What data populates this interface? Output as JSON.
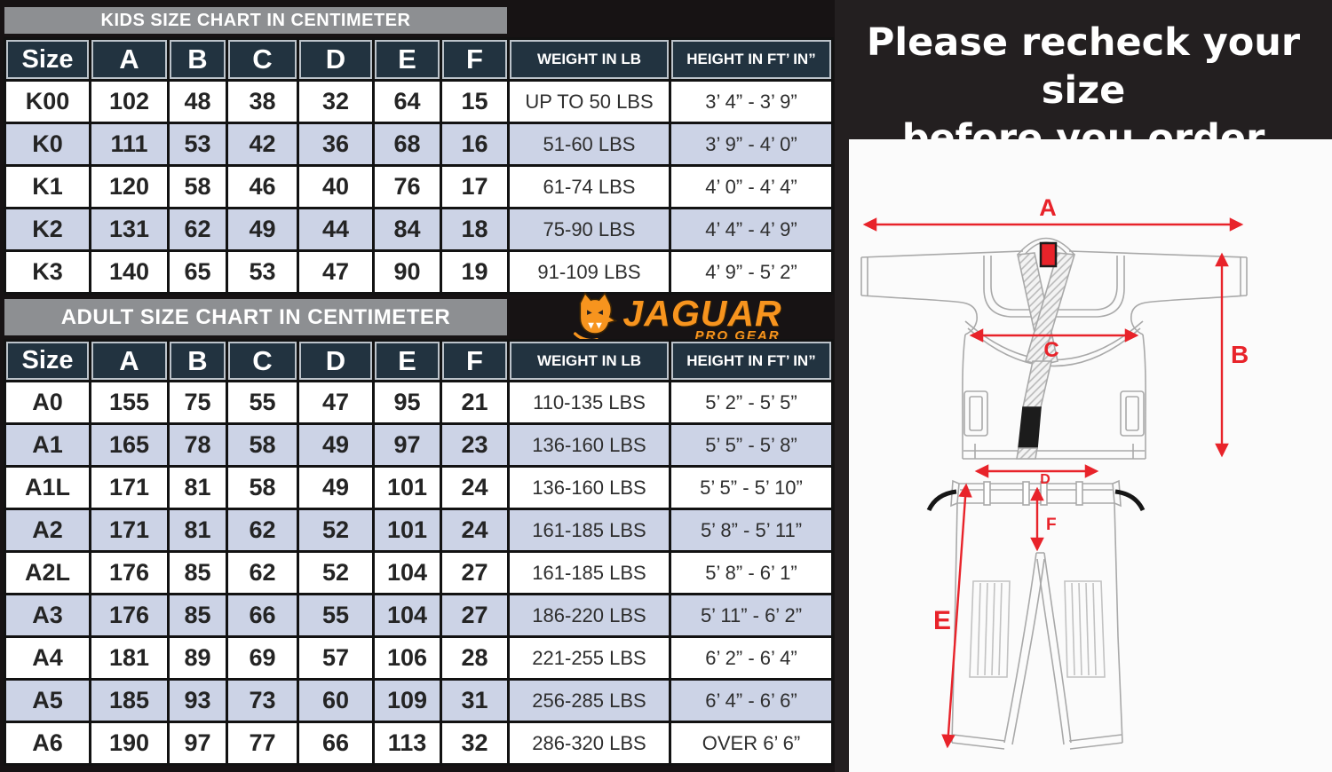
{
  "notice": {
    "line1": "Please recheck your size",
    "line2": "before you order"
  },
  "logo": {
    "brand": "JAGUAR",
    "tagline": "PRO GEAR"
  },
  "kids_chart": {
    "title": "KIDS SIZE CHART IN CENTIMETER",
    "columns": [
      "Size",
      "A",
      "B",
      "C",
      "D",
      "E",
      "F",
      "WEIGHT IN LB",
      "HEIGHT IN FT’ IN”"
    ],
    "rows": [
      [
        "K00",
        "102",
        "48",
        "38",
        "32",
        "64",
        "15",
        "UP TO 50 LBS",
        "3’ 4” - 3’ 9”"
      ],
      [
        "K0",
        "111",
        "53",
        "42",
        "36",
        "68",
        "16",
        "51-60 LBS",
        "3’ 9” - 4’ 0”"
      ],
      [
        "K1",
        "120",
        "58",
        "46",
        "40",
        "76",
        "17",
        "61-74 LBS",
        "4’ 0” - 4’ 4”"
      ],
      [
        "K2",
        "131",
        "62",
        "49",
        "44",
        "84",
        "18",
        "75-90 LBS",
        "4’ 4” - 4’ 9”"
      ],
      [
        "K3",
        "140",
        "65",
        "53",
        "47",
        "90",
        "19",
        "91-109 LBS",
        "4’ 9” - 5’ 2”"
      ]
    ]
  },
  "adult_chart": {
    "title": "ADULT SIZE CHART IN CENTIMETER",
    "columns": [
      "Size",
      "A",
      "B",
      "C",
      "D",
      "E",
      "F",
      "WEIGHT IN LB",
      "HEIGHT IN FT’ IN”"
    ],
    "rows": [
      [
        "A0",
        "155",
        "75",
        "55",
        "47",
        "95",
        "21",
        "110-135 LBS",
        "5’ 2” - 5’ 5”"
      ],
      [
        "A1",
        "165",
        "78",
        "58",
        "49",
        "97",
        "23",
        "136-160 LBS",
        "5’ 5” - 5’ 8”"
      ],
      [
        "A1L",
        "171",
        "81",
        "58",
        "49",
        "101",
        "24",
        "136-160 LBS",
        "5’ 5” - 5’ 10”"
      ],
      [
        "A2",
        "171",
        "81",
        "62",
        "52",
        "101",
        "24",
        "161-185 LBS",
        "5’ 8” - 5’ 11”"
      ],
      [
        "A2L",
        "176",
        "85",
        "62",
        "52",
        "104",
        "27",
        "161-185 LBS",
        "5’ 8” - 6’ 1”"
      ],
      [
        "A3",
        "176",
        "85",
        "66",
        "55",
        "104",
        "27",
        "186-220 LBS",
        "5’ 11” - 6’ 2”"
      ],
      [
        "A4",
        "181",
        "89",
        "69",
        "57",
        "106",
        "28",
        "221-255 LBS",
        "6’ 2” - 6’ 4”"
      ],
      [
        "A5",
        "185",
        "93",
        "73",
        "60",
        "109",
        "31",
        "256-285 LBS",
        "6’ 4” - 6’ 6”"
      ],
      [
        "A6",
        "190",
        "97",
        "77",
        "66",
        "113",
        "32",
        "286-320 LBS",
        "OVER 6’ 6”"
      ]
    ]
  },
  "diagram": {
    "jacket_labels": {
      "a": "A",
      "b": "B",
      "c": "C"
    },
    "pants_labels": {
      "d": "D",
      "e": "E",
      "f": "F"
    }
  },
  "colors": {
    "accent_red": "#e8232a",
    "brand_orange": "#f7941e",
    "header_navy": "#223340",
    "row_alt_blue": "#ccd3e6",
    "bar_gray": "#8d8f92"
  }
}
